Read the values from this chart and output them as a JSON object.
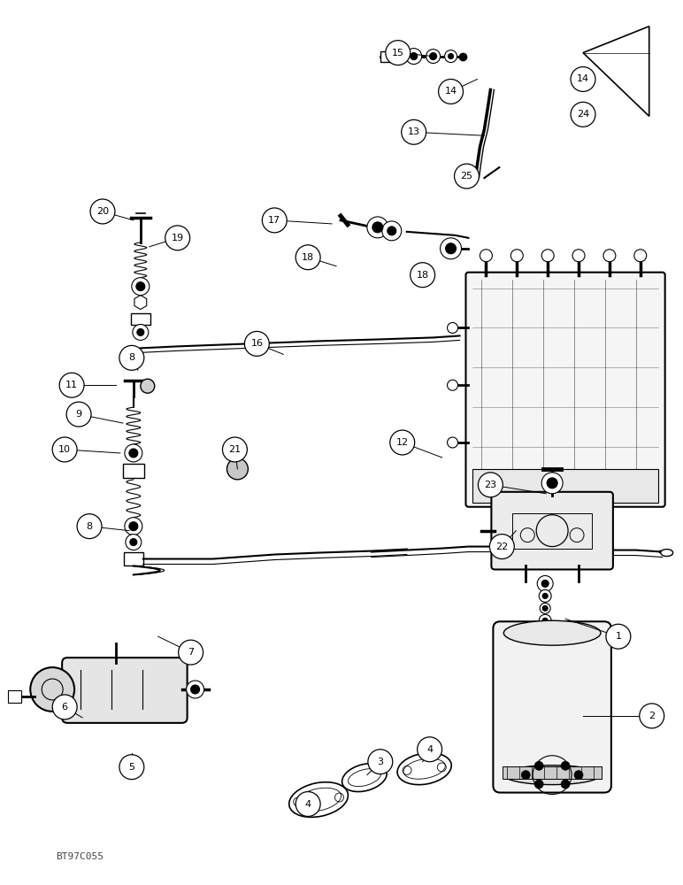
{
  "bg_color": "#ffffff",
  "fig_width": 7.72,
  "fig_height": 10.0,
  "dpi": 100,
  "watermark": "BT97C055"
}
